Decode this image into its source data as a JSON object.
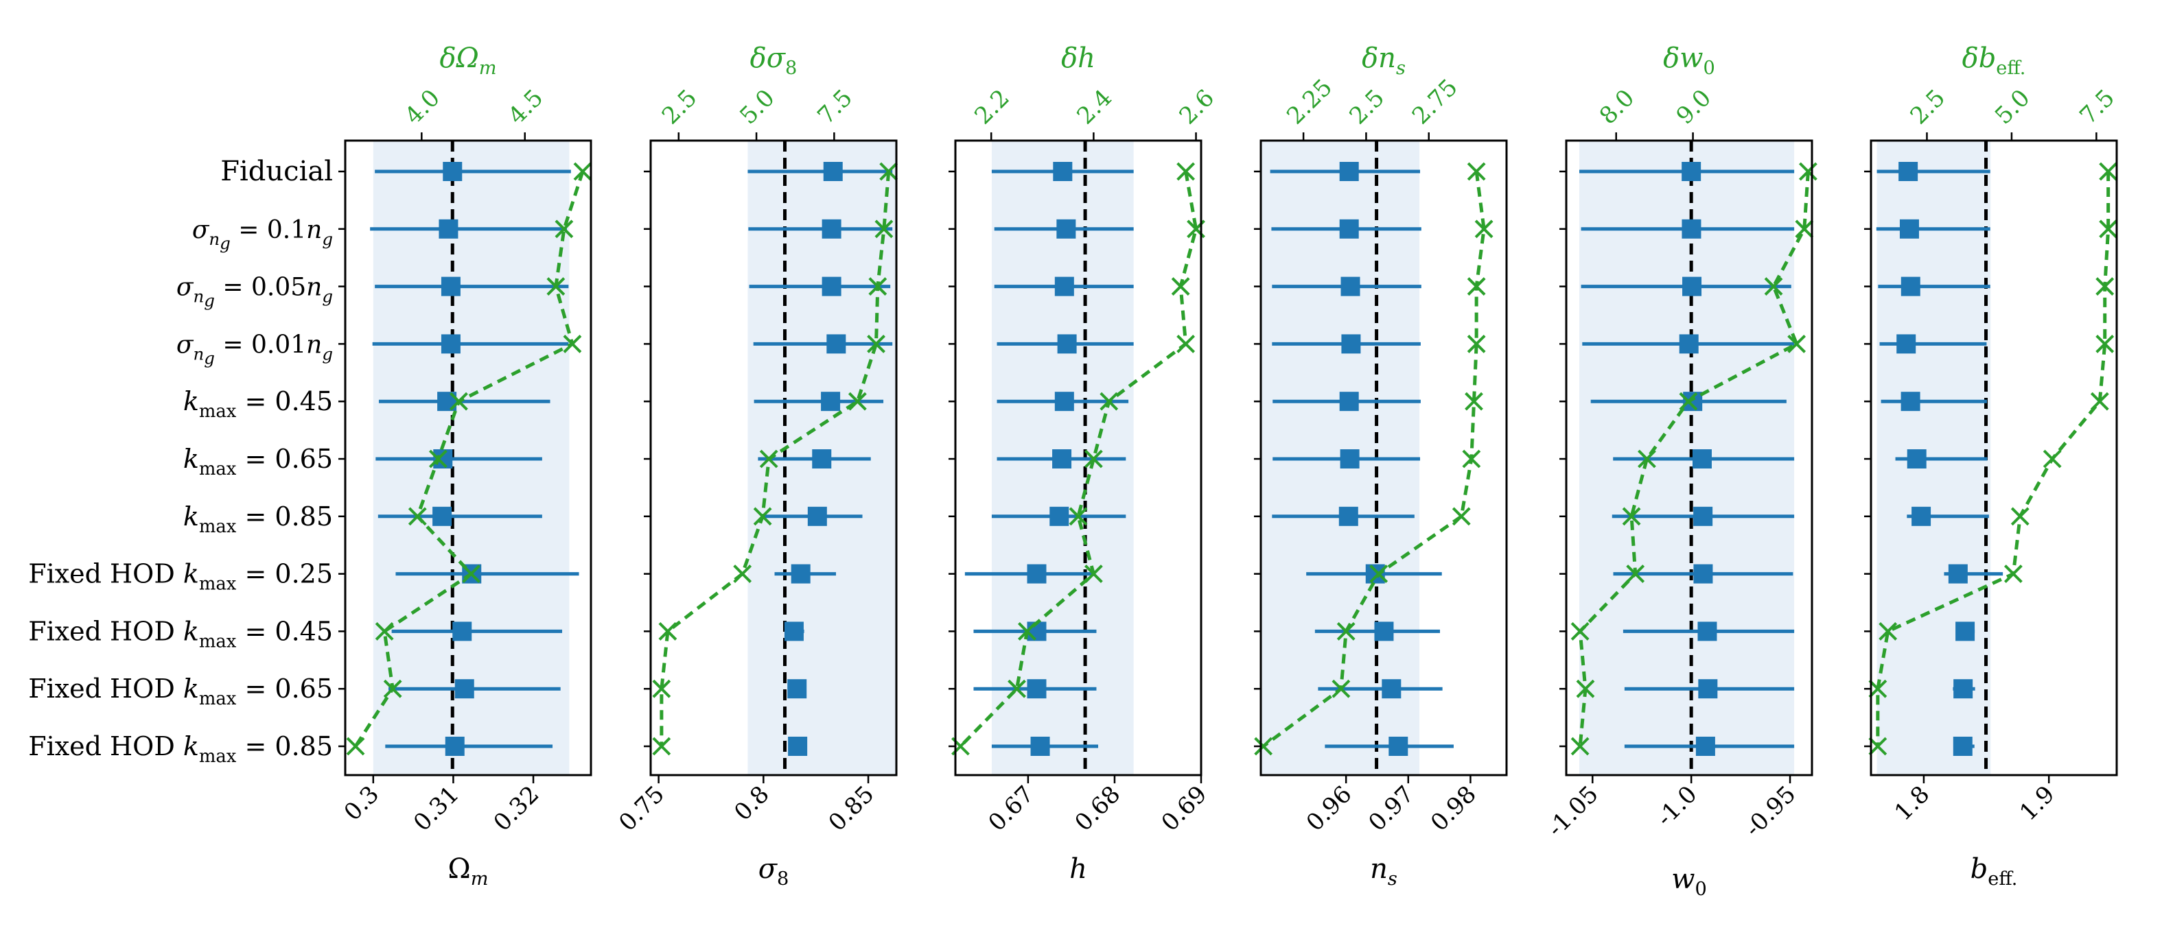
{
  "chart_data": {
    "type": "scatter",
    "rows": [
      "Fiducial",
      "σng = 0.1ng",
      "σng = 0.05ng",
      "σng = 0.01ng",
      "kmax = 0.45",
      "kmax = 0.65",
      "kmax = 0.85",
      "Fixed HOD kmax = 0.25",
      "Fixed HOD kmax = 0.45",
      "Fixed HOD kmax = 0.65",
      "Fixed HOD kmax = 0.85"
    ],
    "colors": {
      "mean": "#1f77b4",
      "band": "#e8f0f8",
      "delta": "#2ca02c",
      "fiducial": "#000000"
    },
    "marker_icons": {
      "mean": "square-marker-icon",
      "delta": "x-marker-icon"
    },
    "panels": [
      {
        "xlabel": "Ωm",
        "top_label": "δΩm",
        "xlim": [
          0.2965,
          0.3272
        ],
        "xticks": [
          0.3,
          0.31,
          0.32
        ],
        "xtick_labels": [
          "0.3",
          "0.31",
          "0.32"
        ],
        "fiducial": 0.3099,
        "band": [
          0.3,
          0.3245
        ],
        "means": [
          0.3099,
          0.3094,
          0.3097,
          0.3097,
          0.3092,
          0.3087,
          0.3086,
          0.3123,
          0.3111,
          0.3114,
          0.3102
        ],
        "errlo": [
          0.3002,
          0.2996,
          0.3002,
          0.2999,
          0.3007,
          0.3003,
          0.3006,
          0.3028,
          0.3023,
          0.3019,
          0.3015
        ],
        "errhi": [
          0.3247,
          0.3242,
          0.3244,
          0.3244,
          0.3221,
          0.3211,
          0.3211,
          0.3257,
          0.3236,
          0.3234,
          0.3224
        ],
        "top_xlim": [
          3.63,
          4.82
        ],
        "top_ticks": [
          4.0,
          4.5
        ],
        "top_tick_labels": [
          "4.0",
          "4.5"
        ],
        "delta": [
          4.78,
          4.69,
          4.65,
          4.73,
          4.18,
          4.08,
          3.98,
          4.24,
          3.82,
          3.86,
          3.68
        ]
      },
      {
        "xlabel": "σ8",
        "top_label": "δσ8",
        "xlim": [
          0.7462,
          0.8634
        ],
        "xticks": [
          0.75,
          0.8,
          0.85
        ],
        "xtick_labels": [
          "0.75",
          "0.8",
          "0.85"
        ],
        "fiducial": 0.8102,
        "band": [
          0.7925,
          0.8634
        ],
        "means": [
          0.8332,
          0.8325,
          0.8325,
          0.8347,
          0.832,
          0.8278,
          0.8257,
          0.8178,
          0.8146,
          0.816,
          0.8163
        ],
        "errlo": [
          0.7925,
          0.7928,
          0.7932,
          0.7952,
          0.7955,
          0.7974,
          0.8002,
          0.8053,
          0.8113,
          0.8125,
          0.8129
        ],
        "errhi": [
          0.8615,
          0.8615,
          0.8605,
          0.8615,
          0.8572,
          0.8512,
          0.8472,
          0.8346,
          0.8194,
          0.8196,
          0.8206
        ],
        "top_xlim": [
          1.6,
          9.5
        ],
        "top_ticks": [
          2.5,
          5.0,
          7.5
        ],
        "top_tick_labels": [
          "2.5",
          "5.0",
          "7.5"
        ],
        "delta": [
          9.25,
          9.1,
          8.9,
          8.85,
          8.25,
          5.4,
          5.2,
          4.55,
          2.15,
          1.95,
          1.95
        ]
      },
      {
        "xlabel": "h",
        "top_label": "δh",
        "xlim": [
          0.6616,
          0.69
        ],
        "xticks": [
          0.67,
          0.68,
          0.69
        ],
        "xtick_labels": [
          "0.67",
          "0.68",
          "0.69"
        ],
        "fiducial": 0.6766,
        "band": [
          0.6658,
          0.6822
        ],
        "means": [
          0.674,
          0.6744,
          0.6742,
          0.6745,
          0.6742,
          0.6739,
          0.6736,
          0.671,
          0.671,
          0.671,
          0.6714
        ],
        "errlo": [
          0.6658,
          0.6661,
          0.6661,
          0.6664,
          0.6664,
          0.6664,
          0.6658,
          0.6627,
          0.6637,
          0.6637,
          0.6658
        ],
        "errhi": [
          0.6822,
          0.6822,
          0.6822,
          0.6822,
          0.6816,
          0.6813,
          0.6813,
          0.6775,
          0.6779,
          0.6779,
          0.6781
        ],
        "top_xlim": [
          2.13,
          2.61
        ],
        "top_ticks": [
          2.2,
          2.4,
          2.6
        ],
        "top_tick_labels": [
          "2.2",
          "2.4",
          "2.6"
        ],
        "delta": [
          2.58,
          2.6,
          2.57,
          2.58,
          2.43,
          2.4,
          2.37,
          2.4,
          2.27,
          2.25,
          2.14
        ]
      },
      {
        "xlabel": "ns",
        "top_label": "δns",
        "xlim": [
          0.9463,
          0.9858
        ],
        "xticks": [
          0.96,
          0.97,
          0.98
        ],
        "xtick_labels": [
          "0.96",
          "0.97",
          "0.98"
        ],
        "fiducial": 0.9649,
        "band": [
          0.9463,
          0.9718
        ],
        "means": [
          0.9605,
          0.9605,
          0.9607,
          0.9608,
          0.9605,
          0.9606,
          0.9604,
          0.9647,
          0.9661,
          0.9673,
          0.9684
        ],
        "errlo": [
          0.9478,
          0.948,
          0.9481,
          0.9481,
          0.9482,
          0.9482,
          0.9481,
          0.9536,
          0.955,
          0.9555,
          0.9566
        ],
        "errhi": [
          0.9719,
          0.9721,
          0.9721,
          0.972,
          0.972,
          0.9719,
          0.971,
          0.9754,
          0.9751,
          0.9755,
          0.9773
        ],
        "top_xlim": [
          2.08,
          3.06
        ],
        "top_ticks": [
          2.25,
          2.5,
          2.75
        ],
        "top_tick_labels": [
          "2.25",
          "2.5",
          "2.75"
        ],
        "delta": [
          2.94,
          2.97,
          2.94,
          2.94,
          2.93,
          2.92,
          2.88,
          2.55,
          2.42,
          2.4,
          2.09
        ]
      },
      {
        "xlabel": "w0",
        "top_label": "δw0",
        "xlim": [
          -1.0633,
          -0.9389
        ],
        "xticks": [
          -1.05,
          -1.0,
          -0.95
        ],
        "xtick_labels": [
          "-1.05",
          "-1.0",
          "-0.95"
        ],
        "fiducial": -1.0,
        "band": [
          -1.0567,
          -0.9479
        ],
        "means": [
          -1.0,
          -0.9999,
          -0.9997,
          -1.0012,
          -0.9993,
          -0.9945,
          -0.9941,
          -0.994,
          -0.9919,
          -0.9916,
          -0.9928
        ],
        "errlo": [
          -1.0567,
          -1.0558,
          -1.0558,
          -1.0552,
          -1.0509,
          -1.0396,
          -1.0401,
          -1.0395,
          -1.0345,
          -1.0338,
          -1.0338
        ],
        "errhi": [
          -0.9479,
          -0.9479,
          -0.9494,
          -0.9479,
          -0.9518,
          -0.9479,
          -0.9479,
          -0.9485,
          -0.9479,
          -0.9479,
          -0.9479
        ],
        "top_xlim": [
          7.35,
          10.55
        ],
        "top_ticks": [
          8.0,
          9.0
        ],
        "top_tick_labels": [
          "8.0",
          "9.0"
        ],
        "delta": [
          10.5,
          10.45,
          10.05,
          10.35,
          8.94,
          8.4,
          8.2,
          8.25,
          7.53,
          7.6,
          7.53
        ]
      },
      {
        "xlabel": "beff.",
        "top_label": "δbeff.",
        "xlim": [
          1.7578,
          1.9542
        ],
        "xticks": [
          1.8,
          1.9
        ],
        "xtick_labels": [
          "1.8",
          "1.9"
        ],
        "fiducial": 1.8497,
        "band": [
          1.7625,
          1.8534
        ],
        "means": [
          1.7875,
          1.7885,
          1.7895,
          1.7859,
          1.7894,
          1.7944,
          1.7979,
          1.8274,
          1.833,
          1.8314,
          1.8312
        ],
        "errlo": [
          1.7625,
          1.7621,
          1.7635,
          1.7647,
          1.7658,
          1.7773,
          1.7865,
          1.8162,
          1.8268,
          1.8233,
          1.8242
        ],
        "errhi": [
          1.8531,
          1.8531,
          1.8531,
          1.8502,
          1.8505,
          1.8508,
          1.8521,
          1.8632,
          1.8407,
          1.841,
          1.8405
        ],
        "top_xlim": [
          0.85,
          8.1
        ],
        "top_ticks": [
          2.5,
          5.0,
          7.5
        ],
        "top_tick_labels": [
          "2.5",
          "5.0",
          "7.5"
        ],
        "delta": [
          7.85,
          7.85,
          7.75,
          7.75,
          7.6,
          6.2,
          5.25,
          5.05,
          1.35,
          1.05,
          1.05
        ]
      }
    ]
  }
}
